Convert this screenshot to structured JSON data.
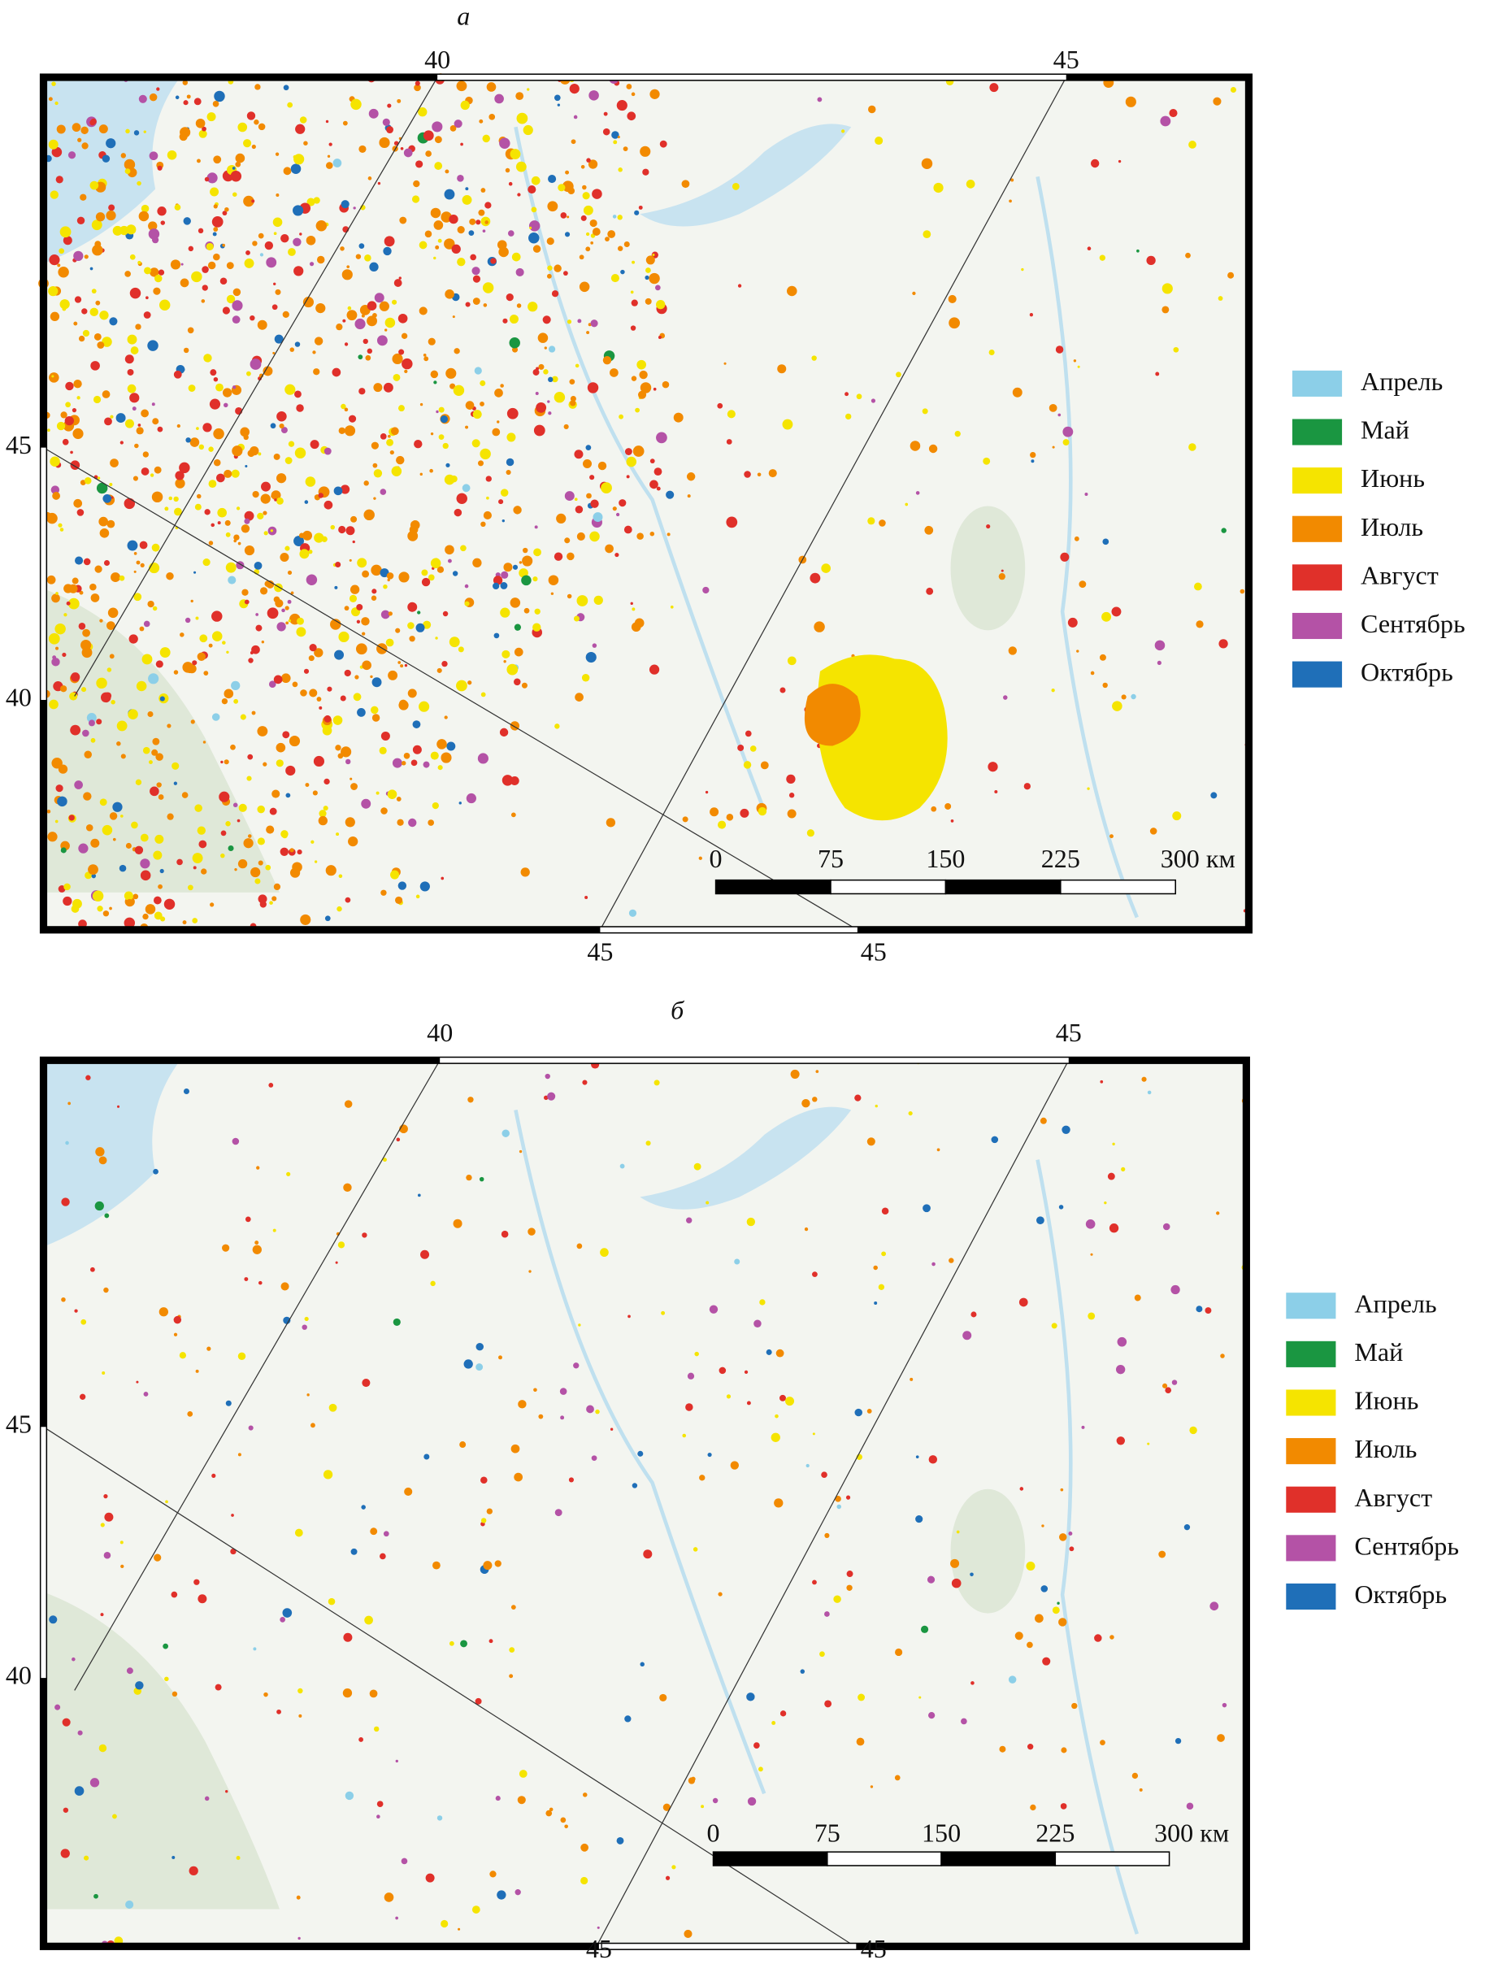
{
  "panels": [
    {
      "label": "а",
      "top_labels": [
        "40",
        "45"
      ],
      "left_labels": [
        "45",
        "40"
      ],
      "bottom_labels": [
        "45",
        "45"
      ],
      "scale_labels": [
        "0",
        "75",
        "150",
        "225",
        "300 км"
      ],
      "legend": [
        {
          "name": "Апрель",
          "color": "#8ccfe8"
        },
        {
          "name": "Май",
          "color": "#1a9641"
        },
        {
          "name": "Июнь",
          "color": "#f5e400"
        },
        {
          "name": "Июль",
          "color": "#f28a00"
        },
        {
          "name": "Август",
          "color": "#e0302a"
        },
        {
          "name": "Сентябрь",
          "color": "#b452a6"
        },
        {
          "name": "Октябрь",
          "color": "#1f6fb8"
        }
      ]
    },
    {
      "label": "б",
      "top_labels": [
        "40",
        "45"
      ],
      "left_labels": [
        "45",
        "40"
      ],
      "bottom_labels": [
        "45",
        "45"
      ],
      "scale_labels": [
        "0",
        "75",
        "150",
        "225",
        "300 км"
      ],
      "legend": [
        {
          "name": "Апрель",
          "color": "#8ccfe8"
        },
        {
          "name": "Май",
          "color": "#1a9641"
        },
        {
          "name": "Июнь",
          "color": "#f5e400"
        },
        {
          "name": "Июль",
          "color": "#f28a00"
        },
        {
          "name": "Август",
          "color": "#e0302a"
        },
        {
          "name": "Сентябрь",
          "color": "#b452a6"
        },
        {
          "name": "Октябрь",
          "color": "#1f6fb8"
        }
      ]
    }
  ]
}
